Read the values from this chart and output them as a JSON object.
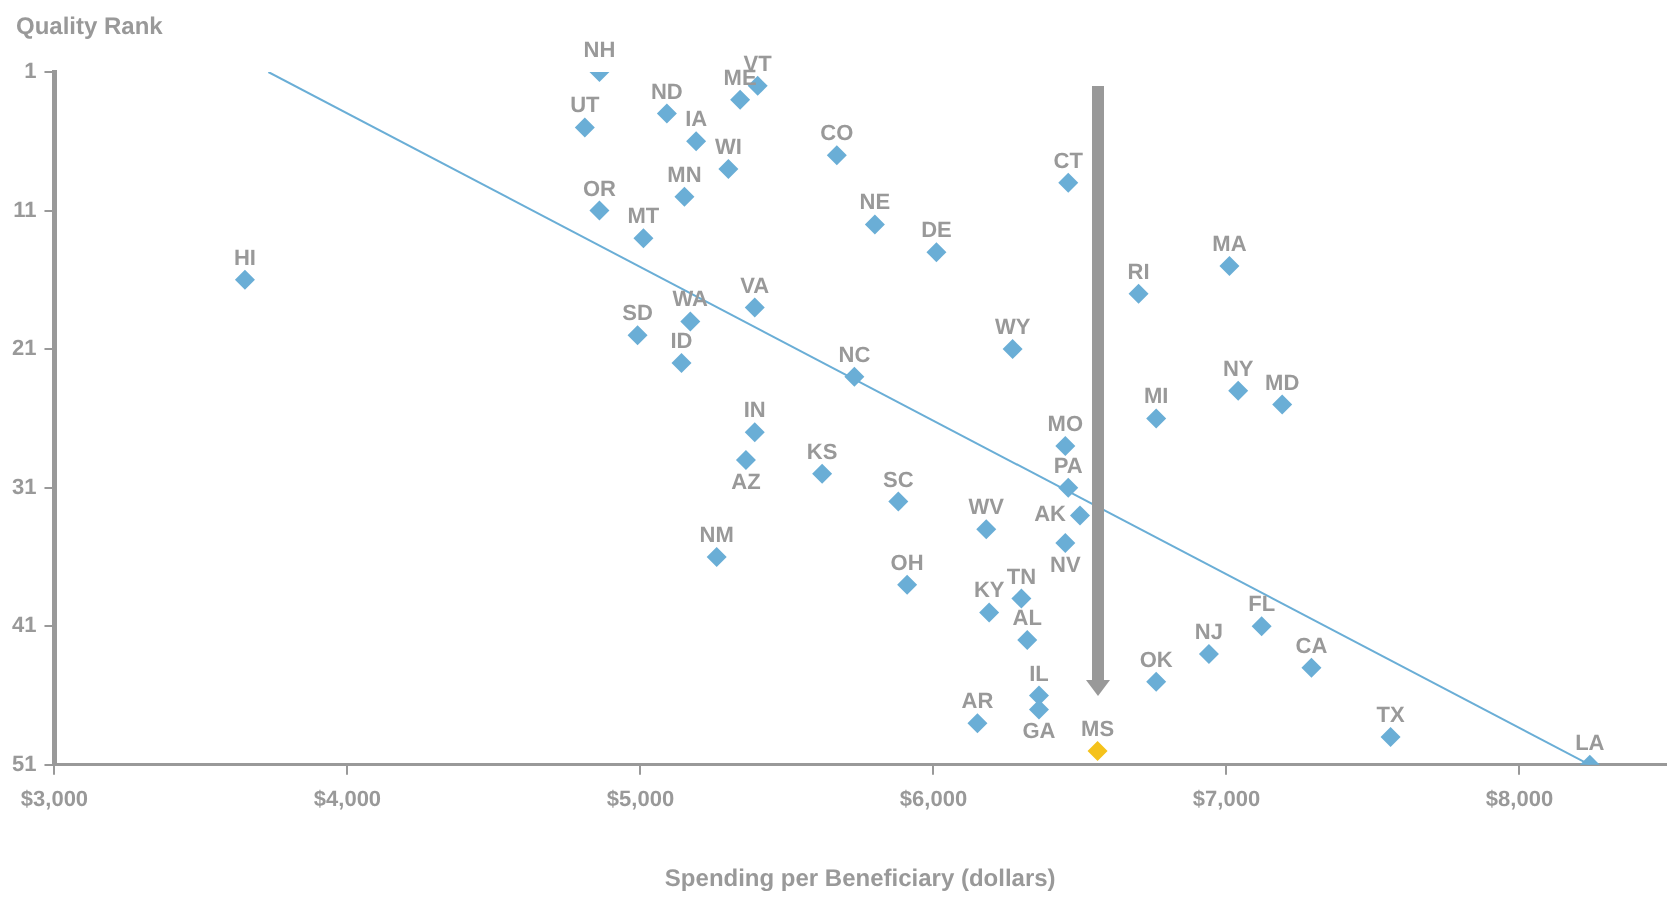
{
  "chart_data": {
    "type": "scatter",
    "xlabel": "Spending per Beneficiary (dollars)",
    "ylabel": "Quality Rank",
    "xlim": [
      3000,
      8500
    ],
    "xticks": [
      {
        "value": 3000,
        "label": "$3,000"
      },
      {
        "value": 4000,
        "label": "$4,000"
      },
      {
        "value": 5000,
        "label": "$5,000"
      },
      {
        "value": 6000,
        "label": "$6,000"
      },
      {
        "value": 7000,
        "label": "$7,000"
      },
      {
        "value": 8000,
        "label": "$8,000"
      }
    ],
    "ylim": [
      51,
      1
    ],
    "yticks": [
      1,
      11,
      21,
      31,
      41,
      51
    ],
    "marker": "diamond",
    "series": [
      {
        "color": "#6aaed6",
        "x": [
          4860,
          5400,
          5340,
          5090,
          4810,
          5190,
          5670,
          5300,
          6460,
          5150,
          4860,
          5800,
          5010,
          6010,
          7010,
          3650,
          6700,
          5390,
          5170,
          4990,
          6270,
          5140,
          5730,
          7040,
          7190,
          6760,
          5390,
          6450,
          5360,
          5620,
          6460,
          5880,
          6500,
          6180,
          6450,
          5260,
          5910,
          6300,
          6190,
          7120,
          6320,
          6940,
          7290,
          6760,
          6360,
          6360,
          6150,
          7560,
          6560,
          8240
        ],
        "values": [
          1,
          2,
          3,
          4,
          5,
          6,
          7,
          8,
          9,
          10,
          11,
          12,
          13,
          14,
          15,
          16,
          17,
          18,
          19,
          20,
          21,
          22,
          23,
          24,
          25,
          26,
          27,
          28,
          29,
          30,
          31,
          32,
          33,
          34,
          35,
          36,
          38,
          39,
          40,
          41,
          42,
          43,
          44,
          45,
          46,
          47,
          48,
          49,
          50,
          51
        ],
        "colors": [
          "#6aaed6",
          "#6aaed6",
          "#6aaed6",
          "#6aaed6",
          "#6aaed6",
          "#6aaed6",
          "#6aaed6",
          "#6aaed6",
          "#6aaed6",
          "#6aaed6",
          "#6aaed6",
          "#6aaed6",
          "#6aaed6",
          "#6aaed6",
          "#6aaed6",
          "#6aaed6",
          "#6aaed6",
          "#6aaed6",
          "#6aaed6",
          "#6aaed6",
          "#6aaed6",
          "#6aaed6",
          "#6aaed6",
          "#6aaed6",
          "#6aaed6",
          "#6aaed6",
          "#6aaed6",
          "#6aaed6",
          "#6aaed6",
          "#6aaed6",
          "#6aaed6",
          "#6aaed6",
          "#6aaed6",
          "#6aaed6",
          "#6aaed6",
          "#6aaed6",
          "#6aaed6",
          "#6aaed6",
          "#6aaed6",
          "#6aaed6",
          "#6aaed6",
          "#6aaed6",
          "#6aaed6",
          "#6aaed6",
          "#6aaed6",
          "#6aaed6",
          "#6aaed6",
          "#6aaed6",
          "#f5c21b",
          "#6aaed6"
        ]
      },
      {
        "type": "line",
        "color": "#6aaed6",
        "marker": "none",
        "x": [
          3730,
          8240
        ],
        "values": [
          1,
          51
        ]
      }
    ],
    "annotations": [
      {
        "text": "NH",
        "x": 4860,
        "y": 1
      },
      {
        "text": "VT",
        "x": 5400,
        "y": 2
      },
      {
        "text": "ME",
        "x": 5340,
        "y": 3
      },
      {
        "text": "ND",
        "x": 5090,
        "y": 4
      },
      {
        "text": "UT",
        "x": 4810,
        "y": 5
      },
      {
        "text": "IA",
        "x": 5190,
        "y": 6
      },
      {
        "text": "CO",
        "x": 5670,
        "y": 7
      },
      {
        "text": "WI",
        "x": 5300,
        "y": 8
      },
      {
        "text": "CT",
        "x": 6460,
        "y": 9
      },
      {
        "text": "MN",
        "x": 5150,
        "y": 10
      },
      {
        "text": "OR",
        "x": 4860,
        "y": 11
      },
      {
        "text": "NE",
        "x": 5800,
        "y": 12
      },
      {
        "text": "MT",
        "x": 5010,
        "y": 13
      },
      {
        "text": "DE",
        "x": 6010,
        "y": 14
      },
      {
        "text": "MA",
        "x": 7010,
        "y": 15
      },
      {
        "text": "HI",
        "x": 3650,
        "y": 16
      },
      {
        "text": "RI",
        "x": 6700,
        "y": 17
      },
      {
        "text": "VA",
        "x": 5390,
        "y": 18
      },
      {
        "text": "WA",
        "x": 5170,
        "y": 19
      },
      {
        "text": "SD",
        "x": 4990,
        "y": 20
      },
      {
        "text": "WY",
        "x": 6270,
        "y": 21
      },
      {
        "text": "ID",
        "x": 5140,
        "y": 22
      },
      {
        "text": "NC",
        "x": 5730,
        "y": 23
      },
      {
        "text": "NY",
        "x": 7040,
        "y": 24
      },
      {
        "text": "MD",
        "x": 7190,
        "y": 25
      },
      {
        "text": "MI",
        "x": 6760,
        "y": 26
      },
      {
        "text": "IN",
        "x": 5390,
        "y": 27
      },
      {
        "text": "MO",
        "x": 6450,
        "y": 28
      },
      {
        "text": "AZ",
        "x": 5360,
        "y": 29
      },
      {
        "text": "KS",
        "x": 5620,
        "y": 30
      },
      {
        "text": "PA",
        "x": 6460,
        "y": 31
      },
      {
        "text": "SC",
        "x": 5880,
        "y": 32
      },
      {
        "text": "AK",
        "x": 6500,
        "y": 33
      },
      {
        "text": "WV",
        "x": 6180,
        "y": 34
      },
      {
        "text": "NV",
        "x": 6450,
        "y": 35
      },
      {
        "text": "NM",
        "x": 5260,
        "y": 36
      },
      {
        "text": "OH",
        "x": 5910,
        "y": 38
      },
      {
        "text": "TN",
        "x": 6300,
        "y": 39
      },
      {
        "text": "KY",
        "x": 6190,
        "y": 40
      },
      {
        "text": "FL",
        "x": 7120,
        "y": 41
      },
      {
        "text": "AL",
        "x": 6320,
        "y": 42
      },
      {
        "text": "NJ",
        "x": 6940,
        "y": 43
      },
      {
        "text": "CA",
        "x": 7290,
        "y": 44
      },
      {
        "text": "OK",
        "x": 6760,
        "y": 45
      },
      {
        "text": "IL",
        "x": 6360,
        "y": 46
      },
      {
        "text": "GA",
        "x": 6360,
        "y": 47
      },
      {
        "text": "AR",
        "x": 6150,
        "y": 48
      },
      {
        "text": "TX",
        "x": 7560,
        "y": 49
      },
      {
        "text": "MS",
        "x": 6560,
        "y": 50
      },
      {
        "text": "LA",
        "x": 8240,
        "y": 51
      }
    ]
  }
}
